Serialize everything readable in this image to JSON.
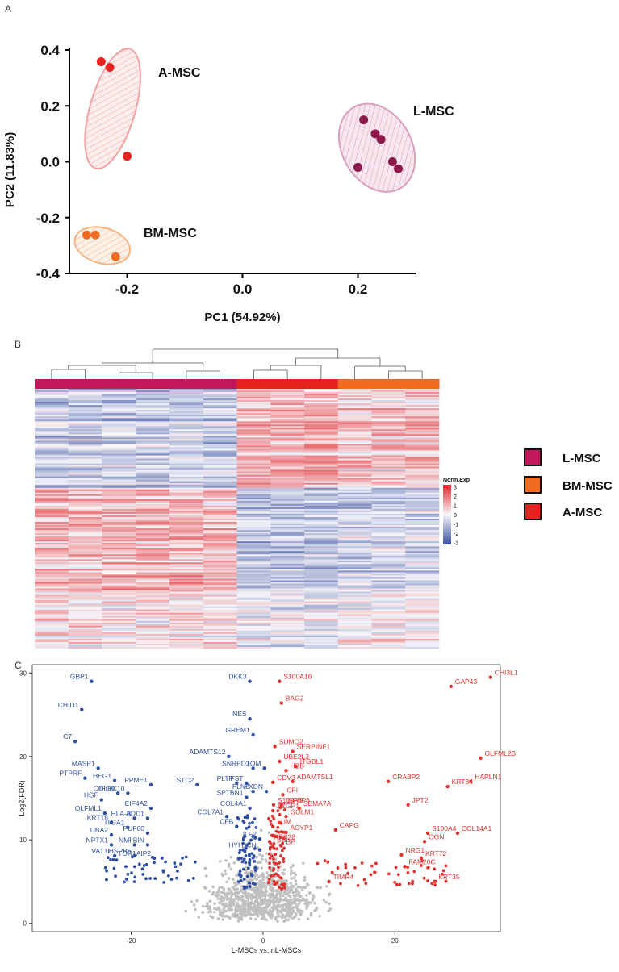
{
  "panel_labels": {
    "a": "A",
    "b": "B",
    "c": "C"
  },
  "colors": {
    "l_msc": "#8b1a4a",
    "a_msc": "#e52421",
    "bm_msc": "#ef6b21",
    "up": "#e0312e",
    "down": "#2f4fa2",
    "ns": "#c0c0c0",
    "heat_l": "#c2185b",
    "heat_bm": "#ef6b21",
    "heat_a": "#e52421"
  },
  "chart_data": [
    {
      "type": "scatter",
      "title": "",
      "xlabel": "PC1 (54.92%)",
      "ylabel": "PC2 (11.83%)",
      "xlim": [
        -0.3,
        0.3
      ],
      "ylim": [
        -0.4,
        0.4
      ],
      "x_ticks": [
        "-0.2",
        "0.0",
        "0.2"
      ],
      "y_ticks": [
        "0.4",
        "0.2",
        "0.0",
        "-0.2",
        "-0.4"
      ],
      "series": [
        {
          "name": "A-MSC",
          "points": [
            [
              -0.245,
              0.358
            ],
            [
              -0.23,
              0.338
            ],
            [
              -0.2,
              0.02
            ]
          ]
        },
        {
          "name": "L-MSC",
          "points": [
            [
              0.21,
              0.15
            ],
            [
              0.23,
              0.1
            ],
            [
              0.24,
              0.08
            ],
            [
              0.2,
              -0.02
            ],
            [
              0.26,
              0.0
            ],
            [
              0.27,
              -0.025
            ]
          ]
        },
        {
          "name": "BM-MSC",
          "points": [
            [
              -0.27,
              -0.262
            ],
            [
              -0.255,
              -0.262
            ],
            [
              -0.22,
              -0.34
            ]
          ]
        }
      ]
    },
    {
      "type": "heatmap",
      "title": "",
      "legend_title": "Norm.Exp",
      "scale_ticks": [
        "3",
        "2",
        "1",
        "0",
        "-1",
        "-2",
        "-3"
      ],
      "groups": [
        {
          "name": "L-MSC",
          "columns": 6
        },
        {
          "name": "A-MSC",
          "columns": 3
        },
        {
          "name": "BM-MSC",
          "columns": 3
        }
      ],
      "legend": [
        "L-MSC",
        "BM-MSC",
        "A-MSC"
      ]
    },
    {
      "type": "scatter",
      "title": "",
      "xlabel": "L-MSCs vs. nL-MSCs",
      "ylabel": "Log2(FDR)",
      "xlim": [
        -35,
        36
      ],
      "ylim": [
        -1,
        31
      ],
      "x_ticks": [
        "-20",
        "0",
        "20"
      ],
      "y_ticks": [
        "30",
        "20",
        "10",
        "0"
      ],
      "down_genes": [
        {
          "label": "GBP1",
          "x": -26,
          "y": 29
        },
        {
          "label": "DKK3",
          "x": -2,
          "y": 29
        },
        {
          "label": "CHID1",
          "x": -27.5,
          "y": 25.6
        },
        {
          "label": "NES",
          "x": -2,
          "y": 24.5
        },
        {
          "label": "GREM1",
          "x": -1.5,
          "y": 22.6
        },
        {
          "label": "C7",
          "x": -28.5,
          "y": 21.8
        },
        {
          "label": "ADAMTS12",
          "x": -5.2,
          "y": 20
        },
        {
          "label": "MASP1",
          "x": -25,
          "y": 18.6
        },
        {
          "label": "SNRPD3",
          "x": -1.5,
          "y": 18.6
        },
        {
          "label": "TOM",
          "x": 0.2,
          "y": 18.6
        },
        {
          "label": "PTPRF",
          "x": -27,
          "y": 17.4
        },
        {
          "label": "HEG1",
          "x": -22.5,
          "y": 17.1
        },
        {
          "label": "PPME1",
          "x": -17,
          "y": 16.6
        },
        {
          "label": "STC2",
          "x": -10,
          "y": 16.6
        },
        {
          "label": "PLTP",
          "x": -4,
          "y": 16.8
        },
        {
          "label": "FST",
          "x": -2.5,
          "y": 16.8
        },
        {
          "label": "FLNB",
          "x": -1.5,
          "y": 15.8
        },
        {
          "label": "PXDN",
          "x": 0.5,
          "y": 15.8
        },
        {
          "label": "IPO9",
          "x": -22,
          "y": 15.6
        },
        {
          "label": "COLEC10",
          "x": -20.5,
          "y": 15.6
        },
        {
          "label": "SPTBN1",
          "x": -2.5,
          "y": 15.1
        },
        {
          "label": "HGF",
          "x": -24.5,
          "y": 14.8
        },
        {
          "label": "EIF4A2",
          "x": -17,
          "y": 13.8
        },
        {
          "label": "COL4A1",
          "x": -2,
          "y": 13.8
        },
        {
          "label": "OLFML1",
          "x": -24,
          "y": 13.2
        },
        {
          "label": "HLA-B",
          "x": -19.5,
          "y": 12.6
        },
        {
          "label": "ADD1",
          "x": -17.5,
          "y": 12.6
        },
        {
          "label": "COL7A1",
          "x": -5.5,
          "y": 12.8
        },
        {
          "label": "KRT18",
          "x": -23,
          "y": 12.1
        },
        {
          "label": "ITGA1",
          "x": -20.5,
          "y": 11.5
        },
        {
          "label": "CFB",
          "x": -4,
          "y": 11.6
        },
        {
          "label": "PUF60",
          "x": -17.5,
          "y": 10.8
        },
        {
          "label": "UBA2",
          "x": -23,
          "y": 10.6
        },
        {
          "label": "ILF2",
          "x": -0.5,
          "y": 10.1
        },
        {
          "label": "NPTX1",
          "x": -23,
          "y": 9.4
        },
        {
          "label": "NMI",
          "x": -19.5,
          "y": 9.4
        },
        {
          "label": "FIBIN",
          "x": -17.5,
          "y": 9.4
        },
        {
          "label": "HYI",
          "x": -3,
          "y": 8.8
        },
        {
          "label": "DCN",
          "x": -0.5,
          "y": 8.8
        },
        {
          "label": "VAT1L",
          "x": -22.5,
          "y": 8.1
        },
        {
          "label": "HSPB6",
          "x": -19.5,
          "y": 8.1
        },
        {
          "label": "TOR1AIP2",
          "x": -16.5,
          "y": 7.8
        }
      ],
      "up_genes": [
        {
          "label": "S100A16",
          "x": 2.5,
          "y": 29
        },
        {
          "label": "CHI3L1",
          "x": 34.5,
          "y": 29.5
        },
        {
          "label": "GAP43",
          "x": 28.5,
          "y": 28.4
        },
        {
          "label": "BAG2",
          "x": 2.8,
          "y": 26.4
        },
        {
          "label": "SUMO2",
          "x": 1.8,
          "y": 21.2
        },
        {
          "label": "SERPINF1",
          "x": 4.5,
          "y": 20.6
        },
        {
          "label": "UBE2L3",
          "x": 2.5,
          "y": 19.4
        },
        {
          "label": "ITGBL1",
          "x": 5,
          "y": 18.8
        },
        {
          "label": "OLFML2B",
          "x": 33,
          "y": 19.8
        },
        {
          "label": "HBB",
          "x": 3.5,
          "y": 18.3
        },
        {
          "label": "CRABP2",
          "x": 19,
          "y": 17
        },
        {
          "label": "HAPLN1",
          "x": 31.5,
          "y": 17
        },
        {
          "label": "CDV3",
          "x": 1.5,
          "y": 16.9
        },
        {
          "label": "ADAMTSL1",
          "x": 4.5,
          "y": 17
        },
        {
          "label": "KRT34",
          "x": 28,
          "y": 16.4
        },
        {
          "label": "CFI",
          "x": 3,
          "y": 15.4
        },
        {
          "label": "S100A6",
          "x": 1.6,
          "y": 14.2
        },
        {
          "label": "IGFBP6",
          "x": 2.8,
          "y": 14.2
        },
        {
          "label": "SEMA7A",
          "x": 5.5,
          "y": 13.8
        },
        {
          "label": "JPT2",
          "x": 22,
          "y": 14.2
        },
        {
          "label": "AZGP1",
          "x": 1.5,
          "y": 13.5
        },
        {
          "label": "GOLM1",
          "x": 3.5,
          "y": 12.8
        },
        {
          "label": "CAPG",
          "x": 11,
          "y": 11.2
        },
        {
          "label": "LUM",
          "x": 1.5,
          "y": 11.6
        },
        {
          "label": "ACYP1",
          "x": 3.5,
          "y": 10.9
        },
        {
          "label": "COL14A1",
          "x": 29.5,
          "y": 10.8
        },
        {
          "label": "S100A4",
          "x": 25,
          "y": 10.8
        },
        {
          "label": "RPS28",
          "x": 1,
          "y": 9.8
        },
        {
          "label": "OGN",
          "x": 24.5,
          "y": 9.8
        },
        {
          "label": "PPBP",
          "x": 1.5,
          "y": 9.2
        },
        {
          "label": "NRG1",
          "x": 21,
          "y": 8.2
        },
        {
          "label": "KRT72",
          "x": 24,
          "y": 7.8
        },
        {
          "label": "FAM20C",
          "x": 21.5,
          "y": 6.8
        },
        {
          "label": "TIMR4",
          "x": 10,
          "y": 5
        },
        {
          "label": "KRT35",
          "x": 26,
          "y": 5
        }
      ]
    }
  ]
}
